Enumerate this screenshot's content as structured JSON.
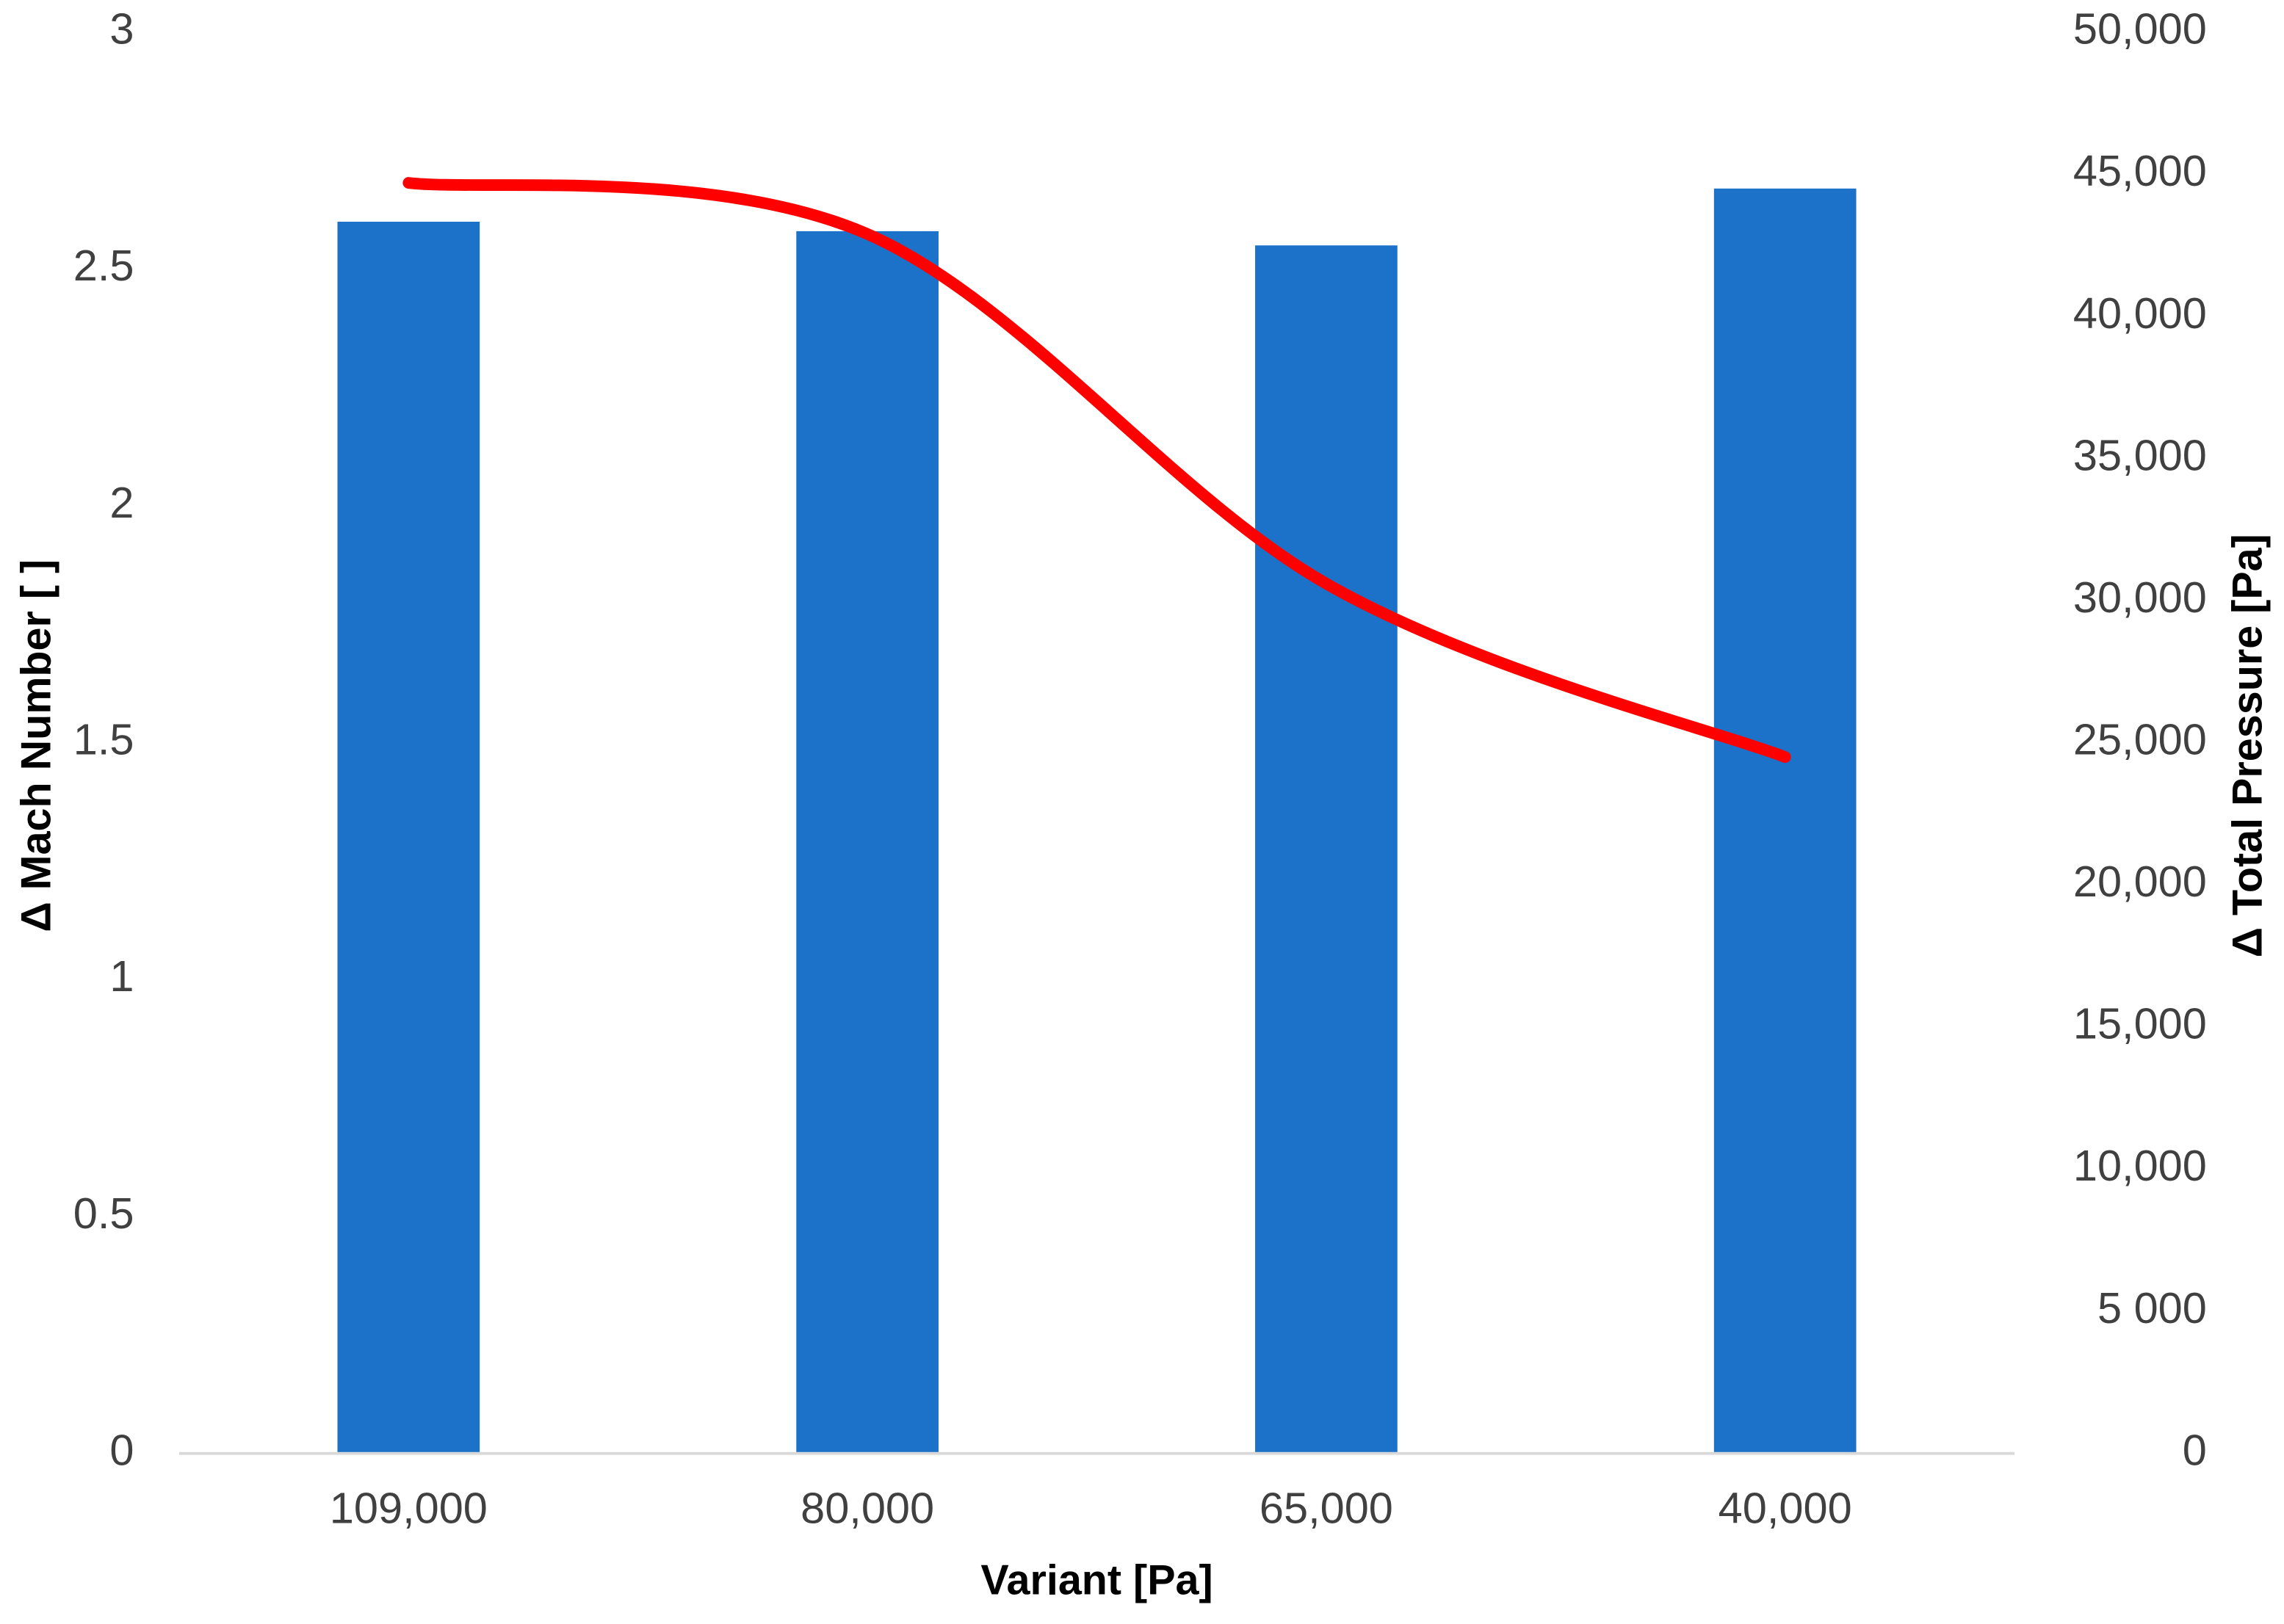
{
  "chart_data": {
    "type": "bar",
    "x_label": "Variant [Pa]",
    "y_label": "Δ Mach Number [ ]",
    "y2_label": "Δ Total Pressure [Pa]",
    "categories": [
      "109,000",
      "80,000",
      "65,000",
      "40,000"
    ],
    "series": [
      {
        "type": "bar",
        "color": "#1b72c8",
        "values": [
          2.6,
          2.58,
          2.55,
          2.67
        ]
      },
      {
        "type": "line",
        "color": "#ff0000",
        "axis": "y2",
        "smooth": true,
        "values": [
          44700,
          42900,
          30600,
          24500
        ]
      }
    ],
    "ylim": [
      0,
      3
    ],
    "yticks": [
      0,
      0.5,
      1,
      1.5,
      2,
      2.5,
      3
    ],
    "y2lim": [
      0,
      50000
    ],
    "y2ticks": [
      0,
      {
        "value": 5000,
        "label": "5 000"
      },
      {
        "value": 10000,
        "label": "10,000"
      },
      {
        "value": 15000,
        "label": "15,000"
      },
      {
        "value": 20000,
        "label": "20,000"
      },
      {
        "value": 25000,
        "label": "25,000"
      },
      {
        "value": 30000,
        "label": "30,000"
      },
      {
        "value": 35000,
        "label": "35,000"
      },
      {
        "value": 40000,
        "label": "40,000"
      },
      {
        "value": 45000,
        "label": "45,000"
      },
      {
        "value": 50000,
        "label": "50,000"
      }
    ],
    "grid": false
  }
}
